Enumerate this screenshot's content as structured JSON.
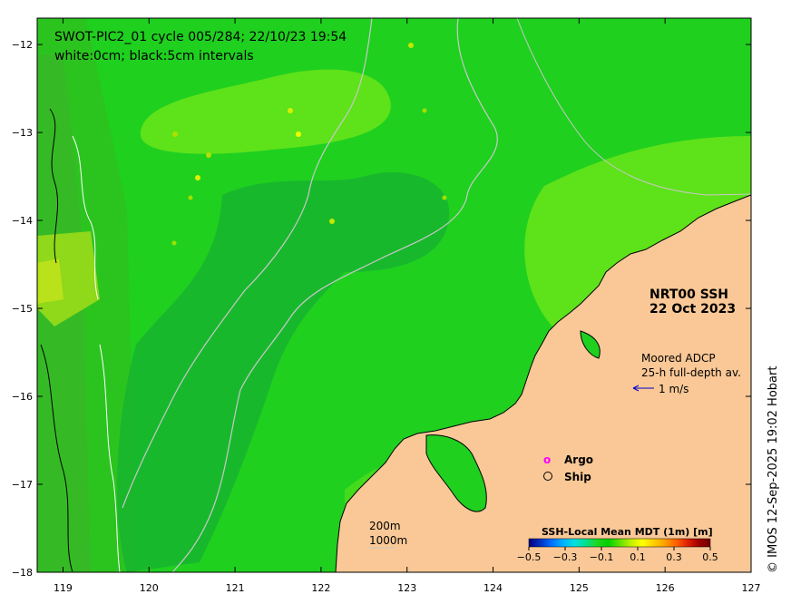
{
  "title": {
    "line1": "SWOT-PIC2_01 cycle 005/284; 22/10/23 19:54",
    "line2": "white:0cm; black:5cm intervals"
  },
  "product": {
    "name": "NRT00 SSH",
    "date": "22 Oct 2023"
  },
  "adcp": {
    "line1": "Moored ADCP",
    "line2": "25-h full-depth av.",
    "scale_label": "1 m/s"
  },
  "legend": {
    "argo_symbol": "o",
    "argo_label": "Argo",
    "ship_label": "Ship",
    "argo_color": "#ff00ff",
    "ship_color": "#000000"
  },
  "depth_labels": {
    "shallow": "200m",
    "deep": "1000m"
  },
  "colorbar": {
    "title": "SSH-Local Mean MDT (1m) [m]",
    "tick_labels": [
      "−0.5",
      "−0.3",
      "−0.1",
      "0.1",
      "0.3",
      "0.5"
    ],
    "range": [
      -0.5,
      0.5
    ],
    "colors": [
      "#000080",
      "#0030c0",
      "#0070ff",
      "#00b0ff",
      "#00e0e0",
      "#00e090",
      "#20d820",
      "#00d000",
      "#60e000",
      "#c0f000",
      "#ffff00",
      "#ffd000",
      "#ffa000",
      "#ff6000",
      "#e02000",
      "#a00000",
      "#700000"
    ]
  },
  "credit": "© IMOS 12-Sep-2025 19:02 Hobart",
  "axes": {
    "x_ticks": [
      "119",
      "120",
      "121",
      "122",
      "123",
      "124",
      "125",
      "126",
      "127"
    ],
    "y_ticks": [
      "−12",
      "−13",
      "−14",
      "−15",
      "−16",
      "−17",
      "−18"
    ],
    "lon_range": [
      118.7,
      127
    ],
    "lat_range": [
      -18,
      -11.7
    ]
  },
  "colors": {
    "ocean_base": "#1fd01f",
    "ocean_light": "#5ee21a",
    "ocean_dark": "#18b42f",
    "land": "#f9c896",
    "coast": "#000000",
    "isobath": "#c8c8c8"
  }
}
